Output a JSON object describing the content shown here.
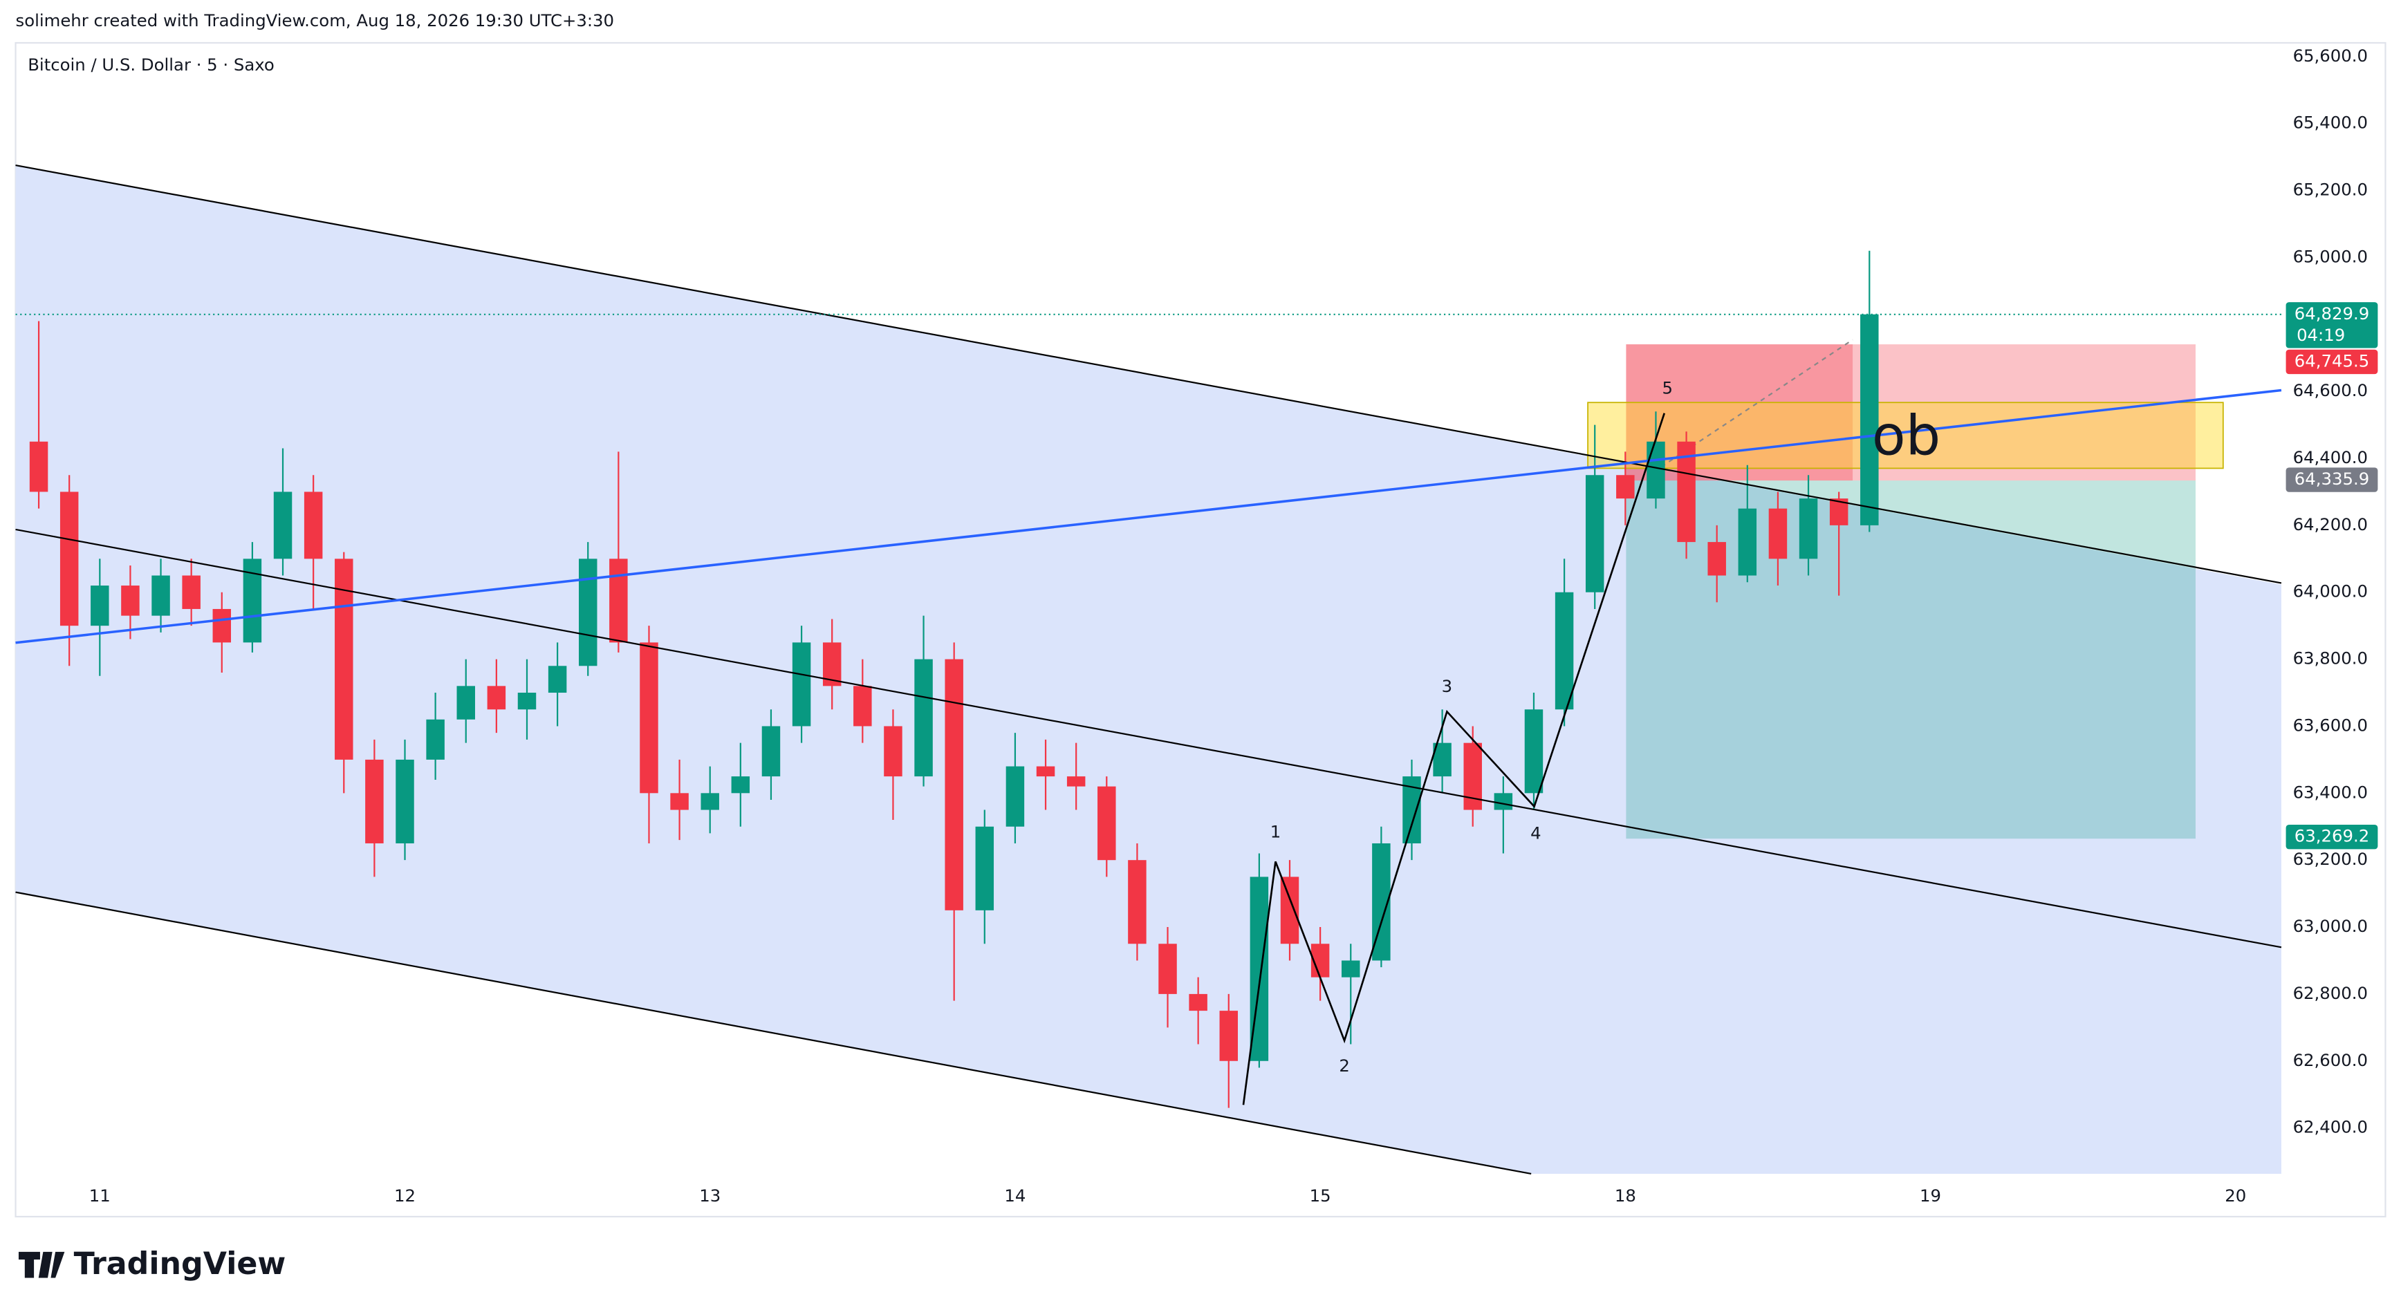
{
  "header": {
    "credit": "solimehr created with TradingView.com, Aug 18, 2026 19:30 UTC+3:30"
  },
  "footer": {
    "brand": "TradingView"
  },
  "chart_data": {
    "type": "candlestick",
    "title": "Bitcoin / U.S. Dollar · 5 · Saxo",
    "x": [
      -0.2,
      -0.1,
      0,
      0.1,
      0.2,
      0.3,
      0.4,
      0.5,
      0.6,
      0.7,
      0.8,
      0.9,
      1,
      1.1,
      1.2,
      1.3,
      1.4,
      1.5,
      1.6,
      1.7,
      1.8,
      1.9,
      2,
      2.1,
      2.2,
      2.3,
      2.4,
      2.5,
      2.6,
      2.7,
      2.8,
      2.9,
      3,
      3.1,
      3.2,
      3.3,
      3.4,
      3.5,
      3.6,
      3.7,
      3.8,
      3.9,
      4,
      4.1,
      4.2,
      4.3,
      4.4,
      4.5,
      4.6,
      4.7,
      4.8,
      4.9,
      5,
      5.1,
      5.2,
      5.3,
      5.4,
      5.5,
      5.6,
      5.7,
      5.8
    ],
    "open": [
      64450,
      64300,
      63900,
      64020,
      63930,
      64050,
      63950,
      63850,
      64100,
      64300,
      64100,
      63500,
      63250,
      63500,
      63620,
      63720,
      63650,
      63700,
      63780,
      64100,
      63850,
      63400,
      63350,
      63400,
      63450,
      63600,
      63850,
      63720,
      63600,
      63450,
      63800,
      63050,
      63300,
      63480,
      63450,
      63420,
      63200,
      62950,
      62800,
      62750,
      62600,
      63150,
      62950,
      62850,
      62900,
      63250,
      63450,
      63550,
      63350,
      63400,
      63650,
      64000,
      64350,
      64280,
      64450,
      64150,
      64050,
      64250,
      64100,
      64280,
      64200
    ],
    "high": [
      64810,
      64350,
      64100,
      64080,
      64100,
      64100,
      64000,
      64150,
      64430,
      64350,
      64120,
      63560,
      63560,
      63700,
      63800,
      63800,
      63800,
      63850,
      64150,
      64420,
      63900,
      63500,
      63480,
      63550,
      63650,
      63900,
      63920,
      63800,
      63650,
      63930,
      63850,
      63350,
      63580,
      63560,
      63550,
      63450,
      63250,
      63000,
      62850,
      62800,
      63220,
      63200,
      63000,
      62950,
      63300,
      63500,
      63650,
      63600,
      63450,
      63700,
      64100,
      64500,
      64420,
      64540,
      64480,
      64200,
      64380,
      64300,
      64350,
      64300,
      65020
    ],
    "low": [
      64250,
      63780,
      63750,
      63860,
      63880,
      63900,
      63760,
      63820,
      64050,
      63950,
      63400,
      63150,
      63200,
      63440,
      63550,
      63580,
      63560,
      63600,
      63750,
      63820,
      63250,
      63260,
      63280,
      63300,
      63380,
      63550,
      63650,
      63550,
      63320,
      63420,
      62780,
      62950,
      63250,
      63350,
      63350,
      63150,
      62900,
      62700,
      62650,
      62460,
      62580,
      62900,
      62780,
      62650,
      62880,
      63200,
      63400,
      63300,
      63220,
      63350,
      63600,
      63950,
      64200,
      64250,
      64100,
      63970,
      64030,
      64020,
      64050,
      63990,
      64180
    ],
    "close": [
      64300,
      63900,
      64020,
      63930,
      64050,
      63950,
      63850,
      64100,
      64300,
      64100,
      63500,
      63250,
      63500,
      63620,
      63720,
      63650,
      63700,
      63780,
      64100,
      63850,
      63400,
      63350,
      63400,
      63450,
      63600,
      63850,
      63720,
      63600,
      63450,
      63800,
      63050,
      63300,
      63480,
      63450,
      63420,
      63200,
      62950,
      62800,
      62750,
      62600,
      63150,
      62950,
      62850,
      62900,
      63250,
      63450,
      63550,
      63350,
      63400,
      63650,
      64000,
      64350,
      64280,
      64450,
      64150,
      64050,
      64250,
      64100,
      64280,
      64200,
      64830
    ],
    "up_color": "#089981",
    "down_color": "#f23645",
    "xlim": [
      -0.276,
      7.15
    ],
    "ylim": [
      62263,
      65641
    ],
    "xticks": [
      {
        "value": 0,
        "label": "11"
      },
      {
        "value": 1,
        "label": "12"
      },
      {
        "value": 2,
        "label": "13"
      },
      {
        "value": 3,
        "label": "14"
      },
      {
        "value": 4,
        "label": "15"
      },
      {
        "value": 5,
        "label": "18"
      },
      {
        "value": 6,
        "label": "19"
      },
      {
        "value": 7,
        "label": "20"
      }
    ],
    "yticks": [
      {
        "value": 62400,
        "label": "62,400.0"
      },
      {
        "value": 62600,
        "label": "62,600.0"
      },
      {
        "value": 62800,
        "label": "62,800.0"
      },
      {
        "value": 63000,
        "label": "63,000.0"
      },
      {
        "value": 63200,
        "label": "63,200.0"
      },
      {
        "value": 63400,
        "label": "63,400.0"
      },
      {
        "value": 63600,
        "label": "63,600.0"
      },
      {
        "value": 63800,
        "label": "63,800.0"
      },
      {
        "value": 64000,
        "label": "64,000.0"
      },
      {
        "value": 64200,
        "label": "64,200.0"
      },
      {
        "value": 64400,
        "label": "64,400.0"
      },
      {
        "value": 64600,
        "label": "64,600.0"
      },
      {
        "value": 64800,
        "label": "64,800.0"
      },
      {
        "value": 65000,
        "label": "65,000.0"
      },
      {
        "value": 65200,
        "label": "65,200.0"
      },
      {
        "value": 65400,
        "label": "65,400.0"
      },
      {
        "value": 65600,
        "label": "65,600.0"
      }
    ],
    "price_tags": [
      {
        "value": 64829.9,
        "label": "64,829.9",
        "color": "#089981"
      },
      {
        "value": 64745.5,
        "label": "64,745.5",
        "color": "#f23645"
      },
      {
        "value": 64335.9,
        "label": "64,335.9",
        "color": "#787b86"
      },
      {
        "value": 63269.2,
        "label": "63,269.2",
        "color": "#089981"
      }
    ],
    "countdown": "04:19",
    "annotations": [
      "1",
      "2",
      "3",
      "4",
      "5",
      "ob"
    ],
    "grid": false
  }
}
